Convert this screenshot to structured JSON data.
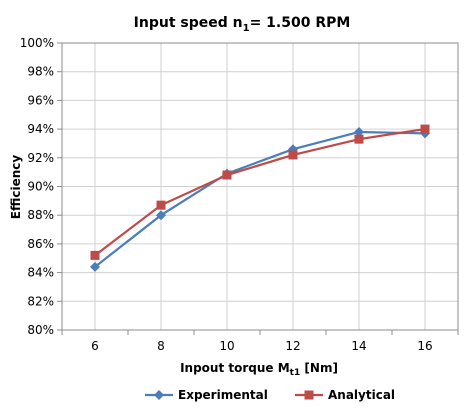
{
  "chart_data": {
    "type": "line",
    "title": "Input speed n",
    "title_subscript": "1",
    "title_rest": "= 1.500 RPM",
    "xlabel": "Inpout torque M",
    "xlabel_subscript": "t1",
    "xlabel_rest": " [Nm]",
    "ylabel": "Efficiency",
    "x": [
      6,
      8,
      10,
      12,
      14,
      16
    ],
    "xlim": [
      5,
      17
    ],
    "ylim": [
      0.8,
      1.0
    ],
    "y_ticks": [
      0.8,
      0.82,
      0.84,
      0.86,
      0.88,
      0.9,
      0.92,
      0.94,
      0.96,
      0.98,
      1.0
    ],
    "y_tick_labels": [
      "80%",
      "82%",
      "84%",
      "86%",
      "88%",
      "90%",
      "92%",
      "94%",
      "96%",
      "98%",
      "100%"
    ],
    "x_ticks": [
      6,
      8,
      10,
      12,
      14,
      16
    ],
    "x_tick_labels": [
      "6",
      "8",
      "10",
      "12",
      "14",
      "16"
    ],
    "grid": true,
    "legend_position": "bottom",
    "series": [
      {
        "name": "Experimental",
        "marker": "diamond",
        "color": "#4a7ebb",
        "values": [
          0.844,
          0.88,
          0.909,
          0.926,
          0.938,
          0.937
        ]
      },
      {
        "name": "Analytical",
        "marker": "square",
        "color": "#be4b48",
        "values": [
          0.852,
          0.887,
          0.908,
          0.922,
          0.933,
          0.94
        ]
      }
    ]
  }
}
